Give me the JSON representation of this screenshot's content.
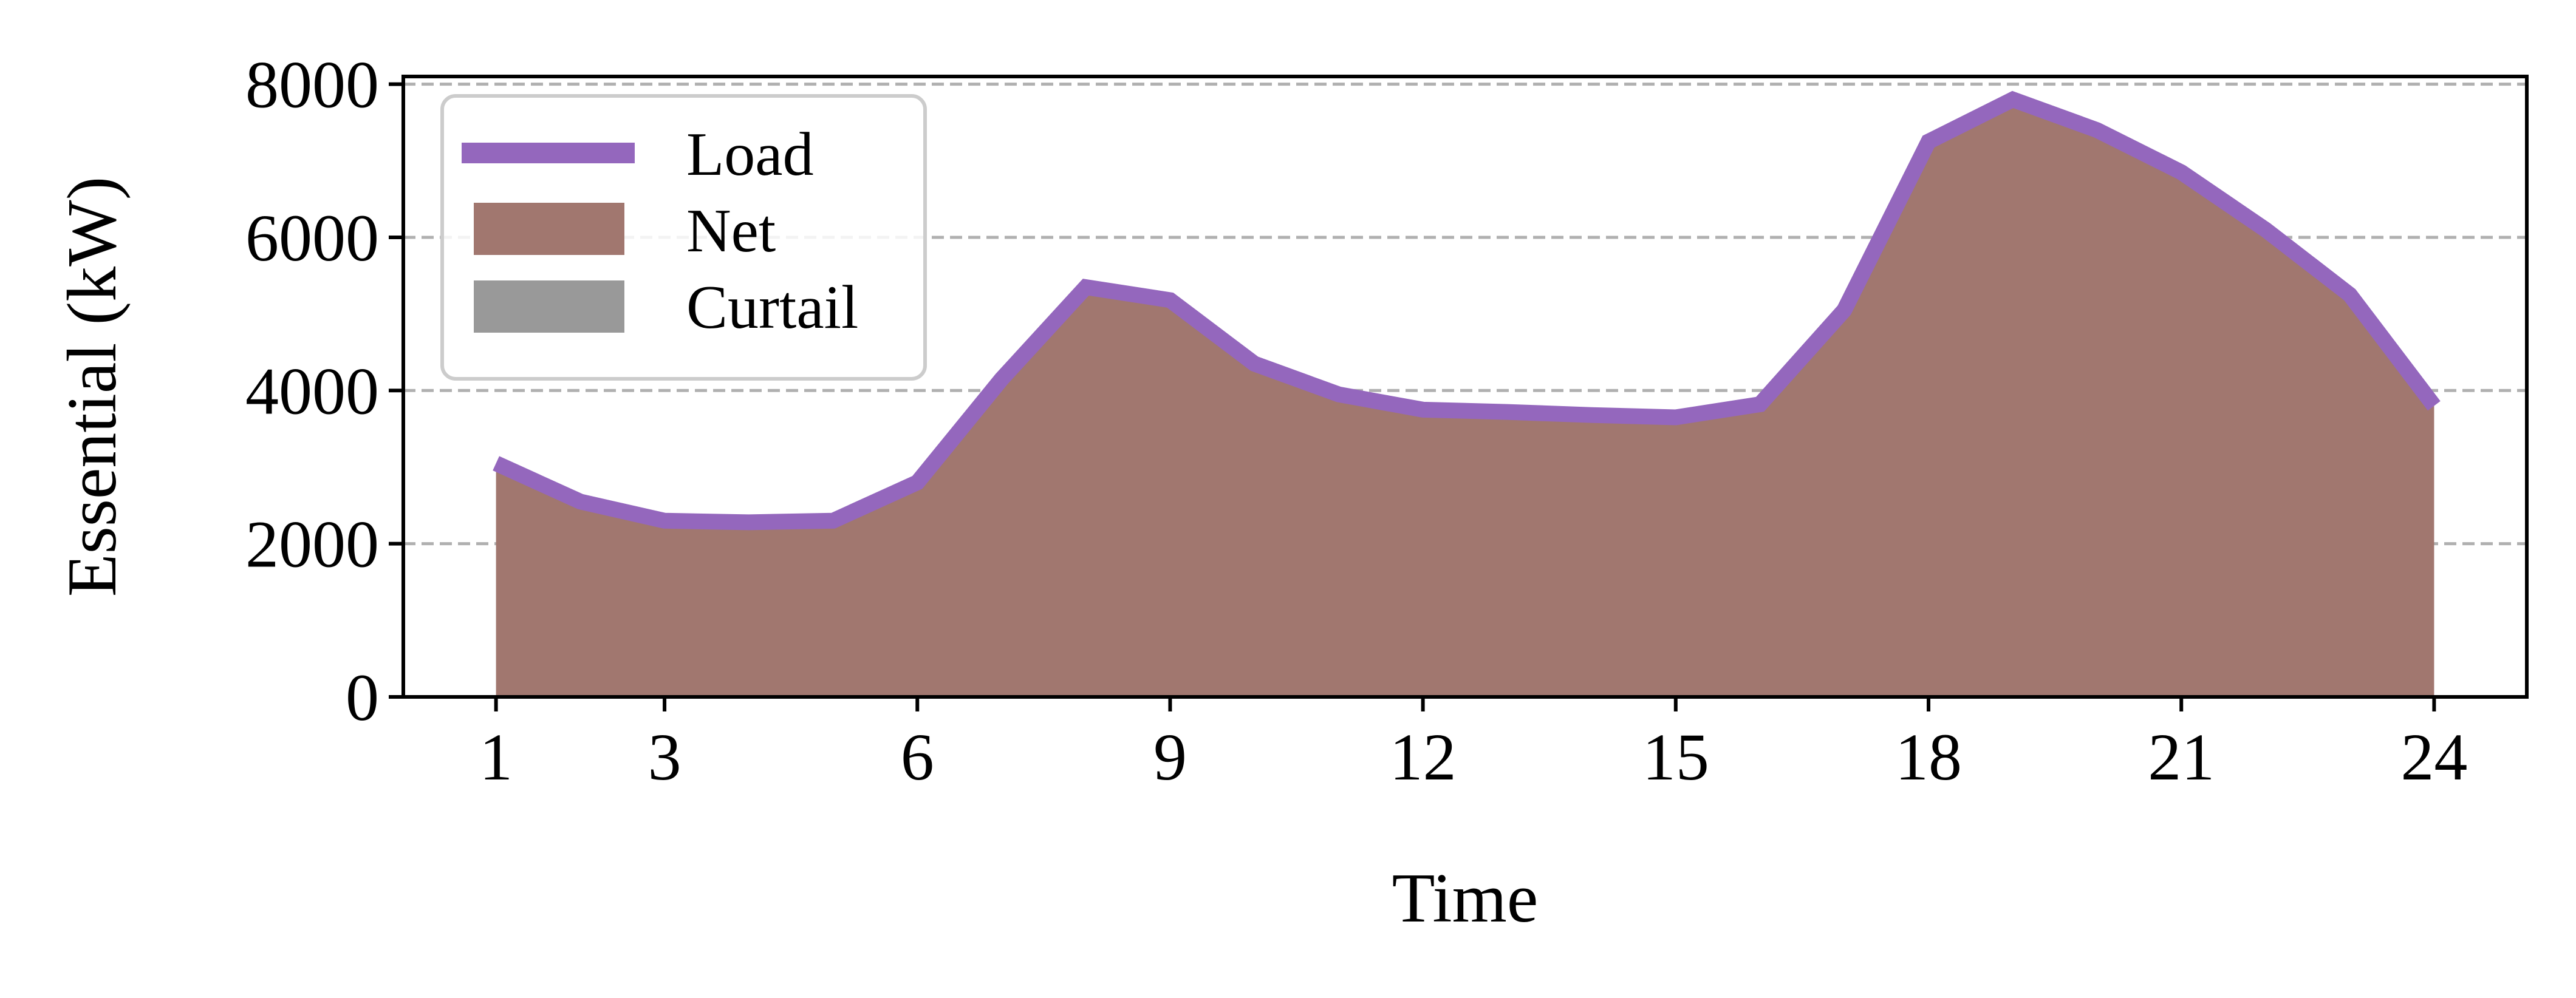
{
  "chart_data": {
    "type": "area",
    "xlabel": "Time",
    "ylabel": "Essential (kW)",
    "x": [
      1,
      2,
      3,
      4,
      5,
      6,
      7,
      8,
      9,
      10,
      11,
      12,
      13,
      14,
      15,
      16,
      17,
      18,
      19,
      20,
      21,
      22,
      23,
      24
    ],
    "xticks": [
      1,
      3,
      6,
      9,
      12,
      15,
      18,
      21,
      24
    ],
    "xlim": [
      -0.1,
      25.1
    ],
    "ylim": [
      0,
      8100
    ],
    "yticks": [
      0,
      2000,
      4000,
      6000,
      8000
    ],
    "grid": "y-dashed",
    "legend_position": "top-left",
    "series": [
      {
        "name": "Load",
        "style": "line",
        "color": "#9467bd",
        "values": [
          3050,
          2550,
          2300,
          2280,
          2300,
          2800,
          4150,
          5350,
          5180,
          4350,
          3950,
          3750,
          3720,
          3680,
          3650,
          3820,
          5050,
          7250,
          7800,
          7400,
          6850,
          6100,
          5250,
          3800
        ]
      },
      {
        "name": "Net",
        "style": "area",
        "color": "#a1776f",
        "values": [
          3050,
          2550,
          2300,
          2280,
          2300,
          2800,
          4150,
          5350,
          5180,
          4350,
          3950,
          3750,
          3720,
          3680,
          3650,
          3820,
          5050,
          7250,
          7800,
          7400,
          6850,
          6100,
          5250,
          3800
        ]
      },
      {
        "name": "Curtail",
        "style": "area",
        "color": "#999999",
        "values": [
          0,
          0,
          0,
          0,
          0,
          0,
          0,
          0,
          0,
          0,
          0,
          0,
          0,
          0,
          0,
          0,
          0,
          0,
          0,
          0,
          0,
          0,
          0,
          0
        ]
      }
    ]
  }
}
